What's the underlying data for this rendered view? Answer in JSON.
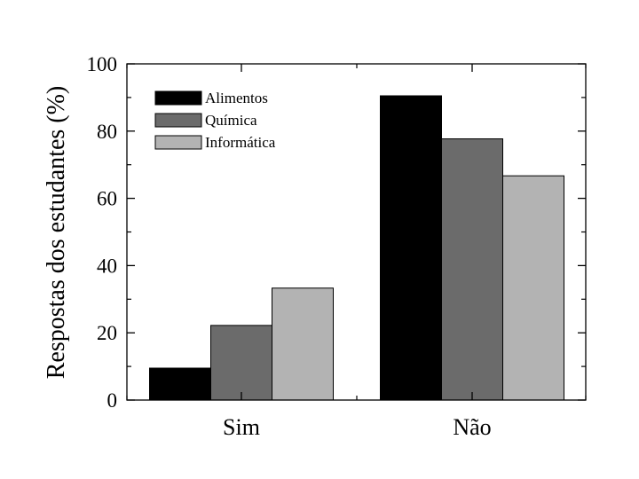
{
  "chart_data": {
    "type": "bar",
    "categories": [
      "Sim",
      "Não"
    ],
    "series": [
      {
        "name": "Alimentos",
        "values": [
          9.5,
          90.5
        ],
        "color": "#000000"
      },
      {
        "name": "Química",
        "values": [
          22.2,
          77.7
        ],
        "color": "#6b6b6b"
      },
      {
        "name": "Informática",
        "values": [
          33.3,
          66.7
        ],
        "color": "#b3b3b3"
      }
    ],
    "title": "",
    "xlabel": "",
    "ylabel": "Respostas dos estudantes (%)",
    "ylim": [
      0,
      100
    ],
    "yticks": [
      0,
      20,
      40,
      60,
      80,
      100
    ],
    "ytick_labels": [
      "0",
      "20",
      "40",
      "60",
      "80",
      "100"
    ],
    "legend_position": "top-left",
    "grid": false
  }
}
